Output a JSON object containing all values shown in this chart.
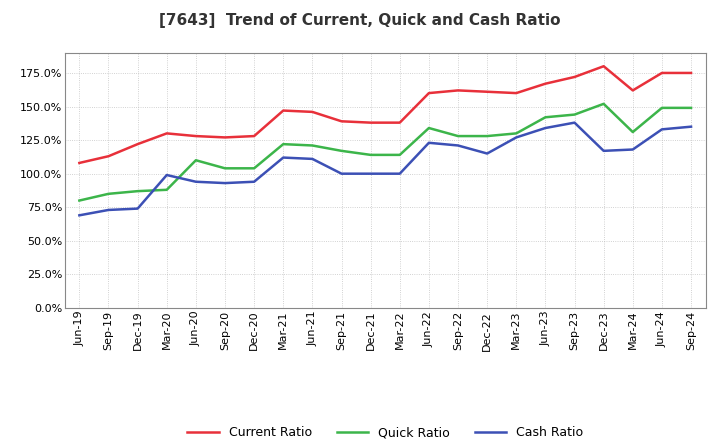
{
  "title": "[7643]  Trend of Current, Quick and Cash Ratio",
  "x_labels": [
    "Jun-19",
    "Sep-19",
    "Dec-19",
    "Mar-20",
    "Jun-20",
    "Sep-20",
    "Dec-20",
    "Mar-21",
    "Jun-21",
    "Sep-21",
    "Dec-21",
    "Mar-22",
    "Jun-22",
    "Sep-22",
    "Dec-22",
    "Mar-23",
    "Jun-23",
    "Sep-23",
    "Dec-23",
    "Mar-24",
    "Jun-24",
    "Sep-24"
  ],
  "current_ratio": [
    1.08,
    1.13,
    1.22,
    1.3,
    1.28,
    1.27,
    1.28,
    1.47,
    1.46,
    1.39,
    1.38,
    1.38,
    1.6,
    1.62,
    1.61,
    1.6,
    1.67,
    1.72,
    1.8,
    1.62,
    1.75,
    1.75
  ],
  "quick_ratio": [
    0.8,
    0.85,
    0.87,
    0.88,
    1.1,
    1.04,
    1.04,
    1.22,
    1.21,
    1.17,
    1.14,
    1.14,
    1.34,
    1.28,
    1.28,
    1.3,
    1.42,
    1.44,
    1.52,
    1.31,
    1.49,
    1.49
  ],
  "cash_ratio": [
    0.69,
    0.73,
    0.74,
    0.99,
    0.94,
    0.93,
    0.94,
    1.12,
    1.11,
    1.0,
    1.0,
    1.0,
    1.23,
    1.21,
    1.15,
    1.27,
    1.34,
    1.38,
    1.17,
    1.18,
    1.33,
    1.35
  ],
  "current_color": "#e8303a",
  "quick_color": "#3cb54a",
  "cash_color": "#3c50b5",
  "bg_color": "#ffffff",
  "plot_bg_color": "#ffffff",
  "grid_color": "#aaaaaa",
  "ylim": [
    0.0,
    1.9
  ],
  "yticks": [
    0.0,
    0.25,
    0.5,
    0.75,
    1.0,
    1.25,
    1.5,
    1.75
  ],
  "line_width": 1.8,
  "title_fontsize": 11,
  "tick_fontsize": 8
}
